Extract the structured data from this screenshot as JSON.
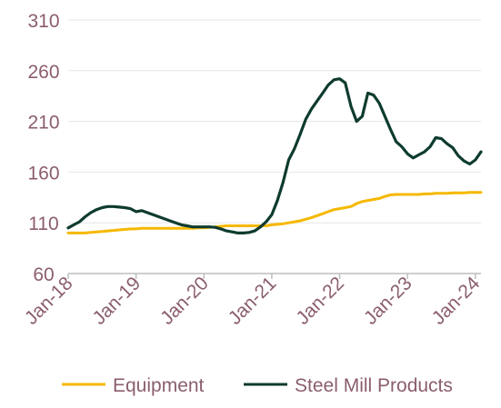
{
  "colors": {
    "text": "#8b5e6b",
    "gridline": "#e6e6e6",
    "axis": "#bdbdbd",
    "equipment": "#f5b800",
    "steel": "#0e3b2f"
  },
  "chart_data": {
    "type": "line",
    "title": "",
    "xlabel": "",
    "ylabel": "",
    "ylim": [
      60,
      310
    ],
    "yticks": [
      60,
      110,
      160,
      210,
      260,
      310
    ],
    "x_range": [
      "Jan-18",
      "Feb-24"
    ],
    "xticks": [
      "Jan-18",
      "Jan-19",
      "Jan-20",
      "Jan-21",
      "Jan-22",
      "Jan-23",
      "Jan-24"
    ],
    "grid": "horizontal",
    "legend_position": "bottom",
    "x": [
      "Jan-18",
      "Feb-18",
      "Mar-18",
      "Apr-18",
      "May-18",
      "Jun-18",
      "Jul-18",
      "Aug-18",
      "Sep-18",
      "Oct-18",
      "Nov-18",
      "Dec-18",
      "Jan-19",
      "Feb-19",
      "Mar-19",
      "Apr-19",
      "May-19",
      "Jun-19",
      "Jul-19",
      "Aug-19",
      "Sep-19",
      "Oct-19",
      "Nov-19",
      "Dec-19",
      "Jan-20",
      "Feb-20",
      "Mar-20",
      "Apr-20",
      "May-20",
      "Jun-20",
      "Jul-20",
      "Aug-20",
      "Sep-20",
      "Oct-20",
      "Nov-20",
      "Dec-20",
      "Jan-21",
      "Feb-21",
      "Mar-21",
      "Apr-21",
      "May-21",
      "Jun-21",
      "Jul-21",
      "Aug-21",
      "Sep-21",
      "Oct-21",
      "Nov-21",
      "Dec-21",
      "Jan-22",
      "Feb-22",
      "Mar-22",
      "Apr-22",
      "May-22",
      "Jun-22",
      "Jul-22",
      "Aug-22",
      "Sep-22",
      "Oct-22",
      "Nov-22",
      "Dec-22",
      "Jan-23",
      "Feb-23",
      "Mar-23",
      "Apr-23",
      "May-23",
      "Jun-23",
      "Jul-23",
      "Aug-23",
      "Sep-23",
      "Oct-23",
      "Nov-23",
      "Dec-23",
      "Jan-24",
      "Feb-24"
    ],
    "series": [
      {
        "name": "Equipment",
        "color": "#f5b800",
        "values": [
          100,
          100,
          100,
          100,
          100.5,
          101,
          101.5,
          102,
          102.5,
          103,
          103.5,
          104,
          104,
          104.5,
          104.5,
          104.5,
          104.5,
          104.5,
          104.5,
          104.5,
          104.5,
          104.5,
          104.5,
          105,
          105,
          105.5,
          106,
          106.5,
          107,
          107,
          107,
          107,
          107,
          107,
          107,
          107,
          108,
          108.5,
          109,
          110,
          111,
          112,
          113.5,
          115,
          117,
          119,
          121,
          123,
          124,
          125,
          126,
          129,
          131,
          132,
          133,
          134,
          136,
          137.5,
          138,
          138,
          138,
          138,
          138,
          138.5,
          138.5,
          139,
          139,
          139,
          139.5,
          139.5,
          139.5,
          140,
          140,
          140
        ]
      },
      {
        "name": "Steel Mill Products",
        "color": "#0e3b2f",
        "values": [
          105,
          108,
          111,
          116,
          120,
          123,
          125,
          126,
          126,
          125.5,
          125,
          124,
          121,
          122,
          120,
          118,
          116,
          114,
          112,
          110,
          108,
          107,
          106,
          106,
          106,
          106,
          105.5,
          104,
          102,
          101,
          100,
          100,
          100.5,
          102,
          106,
          111,
          118,
          132,
          150,
          172,
          183,
          197,
          212,
          222,
          230,
          238,
          246,
          251,
          252,
          248,
          225,
          210,
          215,
          238,
          236,
          228,
          215,
          202,
          190,
          185,
          178,
          174,
          177,
          180,
          185,
          194,
          193,
          188,
          184,
          176,
          171,
          168,
          172,
          180
        ]
      }
    ]
  }
}
